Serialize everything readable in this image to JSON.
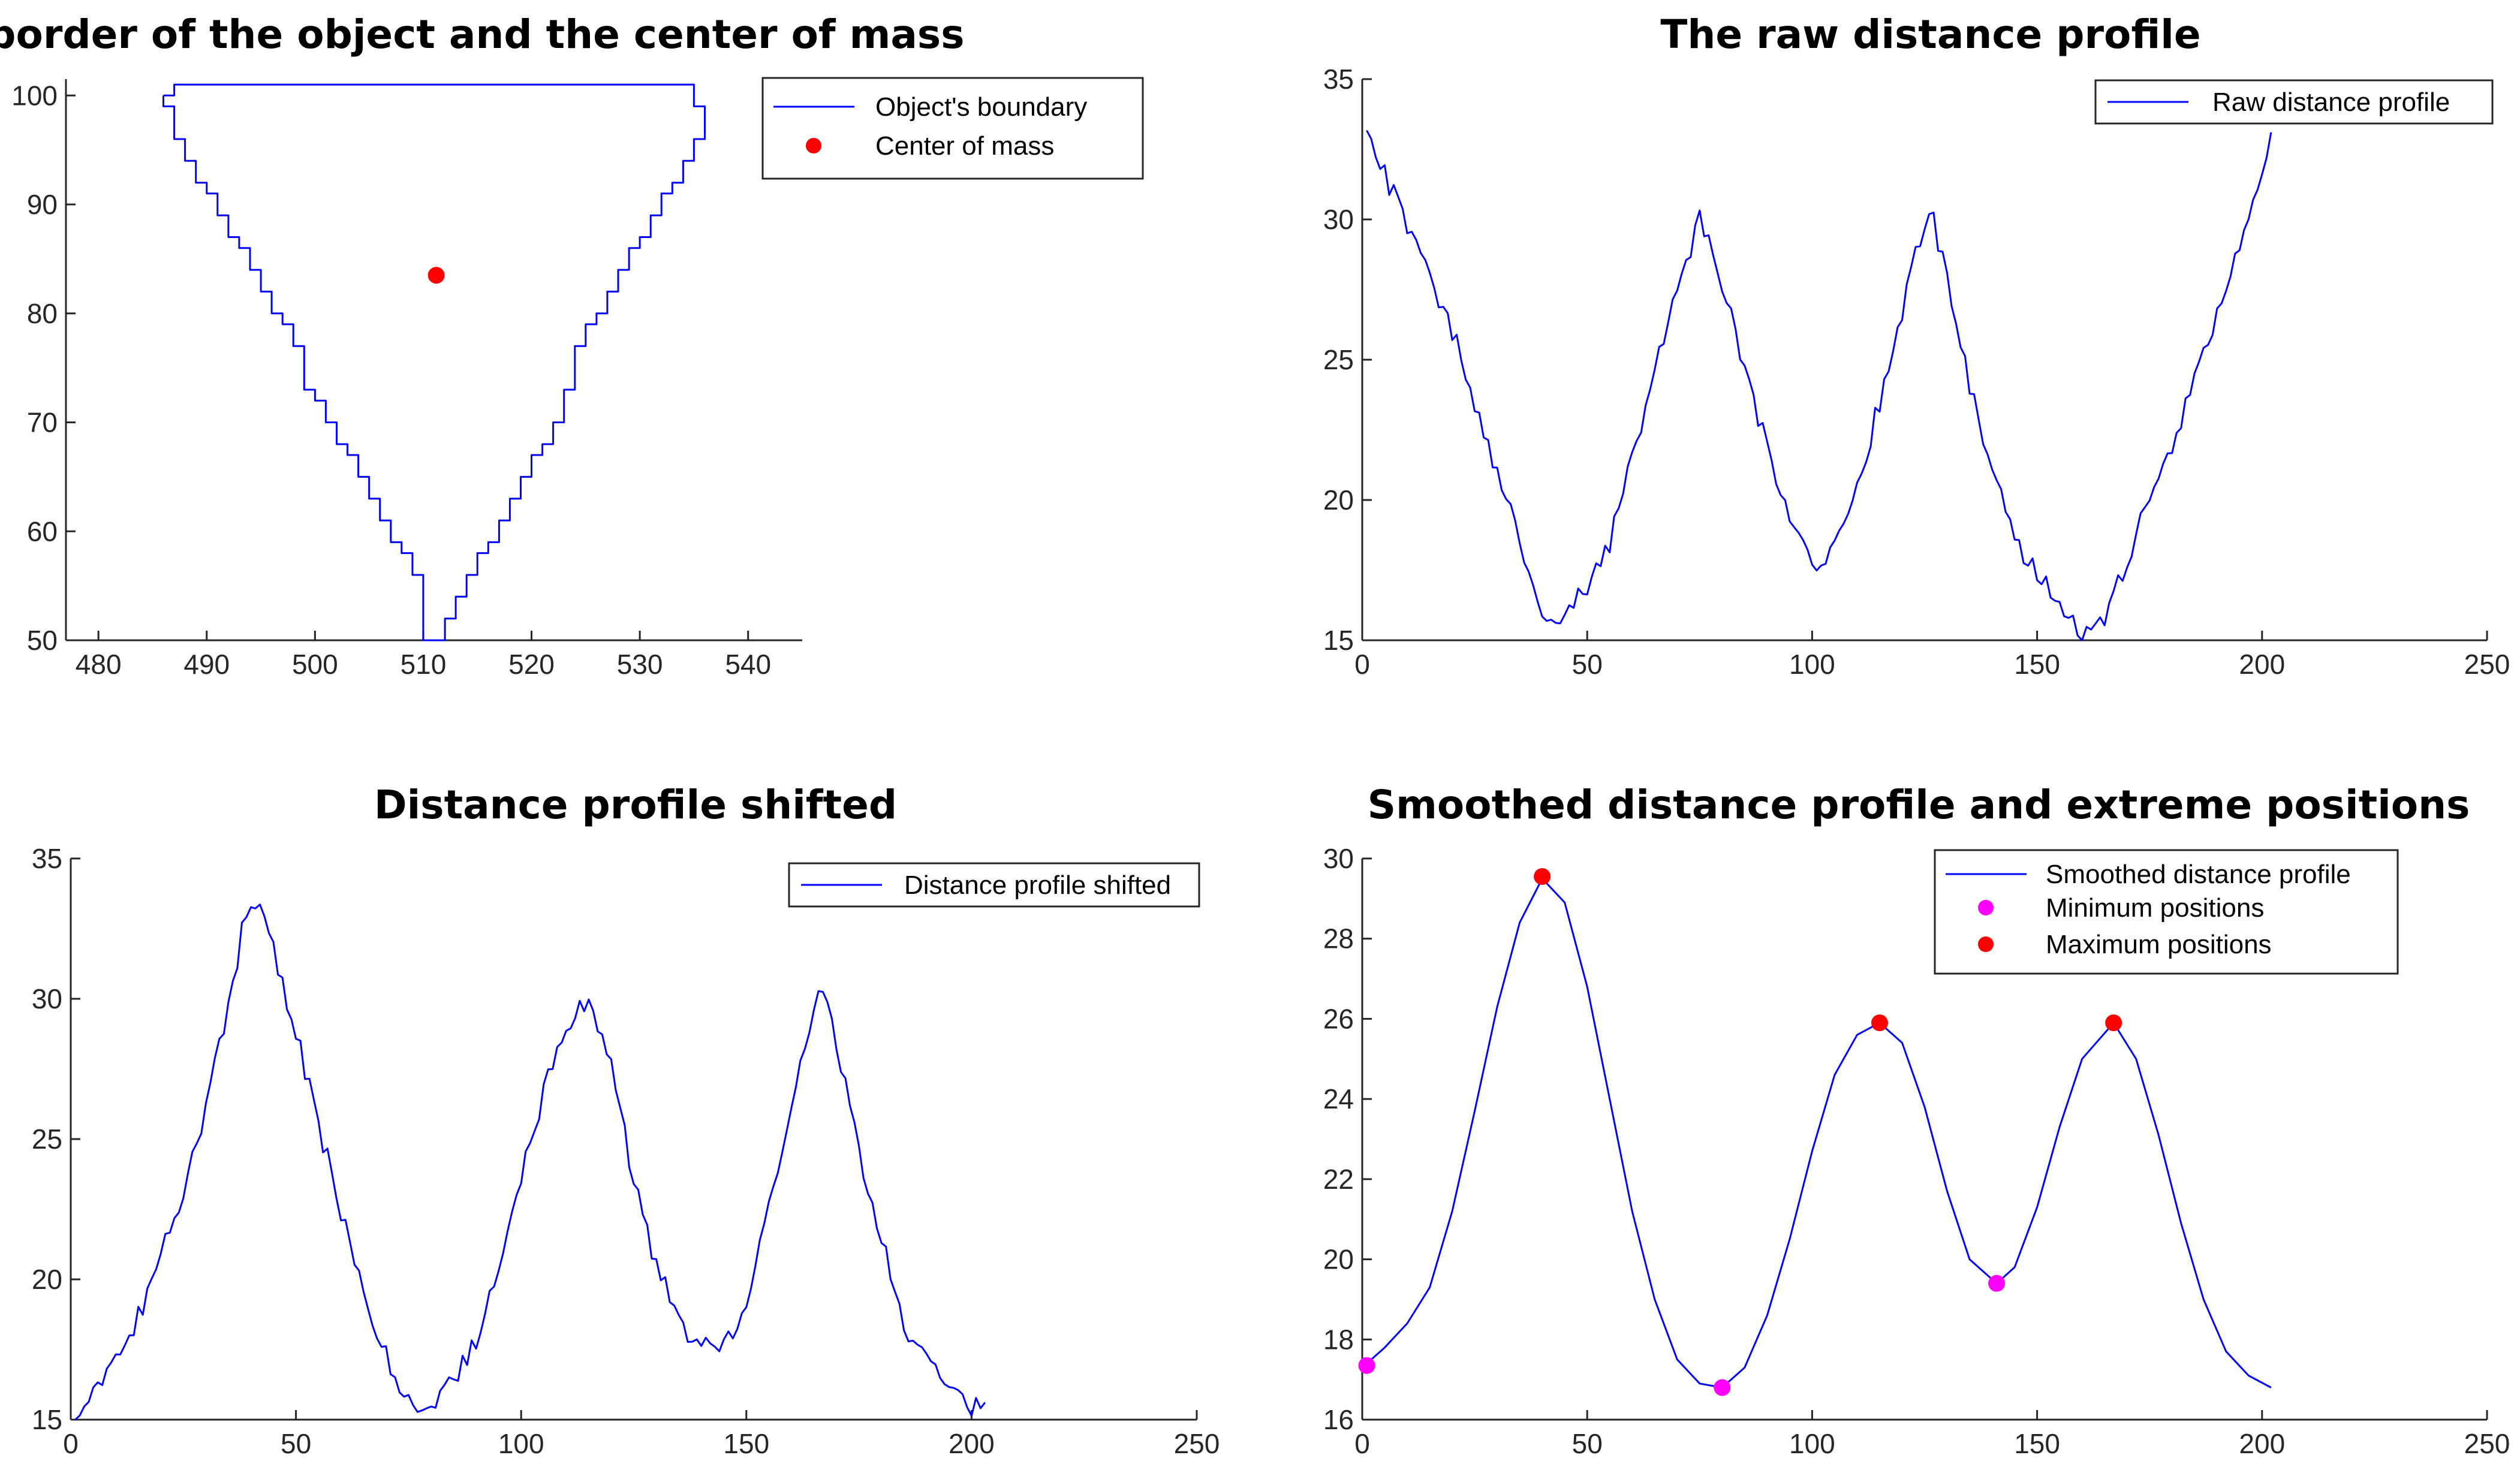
{
  "figure_colors": {
    "axis": "#262626",
    "series": "#0000ff",
    "center": "#ff0000",
    "minimum": "#ff00ff",
    "maximum": "#ff0000"
  },
  "chart_data": [
    {
      "id": "border",
      "type": "line",
      "title": "The border of the object and the center of mass",
      "xlim": [
        477,
        545
      ],
      "ylim": [
        50,
        101.5
      ],
      "xticks": [
        480,
        490,
        500,
        510,
        520,
        530,
        540
      ],
      "yticks": [
        50,
        60,
        70,
        80,
        90,
        100
      ],
      "legend_position": "top-right",
      "series": [
        {
          "name": "Object's boundary",
          "style": "line",
          "x": [
            486,
            486,
            487,
            487,
            488,
            488,
            489,
            489,
            490,
            490,
            491,
            491,
            492,
            492,
            493,
            493,
            494,
            494,
            495,
            495,
            496,
            496,
            497,
            497,
            498,
            498,
            499,
            499,
            500,
            500,
            501,
            501,
            502,
            502,
            503,
            503,
            504,
            504,
            505,
            505,
            506,
            506,
            507,
            507,
            508,
            508,
            509,
            509,
            510,
            510,
            512,
            512,
            513,
            513,
            514,
            514,
            515,
            515,
            516,
            516,
            517,
            517,
            518,
            518,
            519,
            519,
            520,
            520,
            521,
            521,
            522,
            522,
            523,
            523,
            524,
            524,
            525,
            525,
            526,
            526,
            527,
            527,
            528,
            528,
            529,
            529,
            530,
            530,
            531,
            531,
            532,
            532,
            533,
            533,
            534,
            534,
            535,
            535,
            536,
            536,
            535,
            535,
            487,
            487,
            486
          ],
          "y": [
            100,
            99,
            99,
            96,
            96,
            94,
            94,
            92,
            92,
            91,
            91,
            89,
            89,
            87,
            87,
            86,
            86,
            84,
            84,
            82,
            82,
            80,
            80,
            79,
            79,
            77,
            77,
            73,
            73,
            72,
            72,
            70,
            70,
            68,
            68,
            67,
            67,
            65,
            65,
            63,
            63,
            61,
            61,
            59,
            59,
            58,
            58,
            56,
            56,
            50,
            50,
            52,
            52,
            54,
            54,
            56,
            56,
            58,
            58,
            59,
            59,
            61,
            61,
            63,
            63,
            65,
            65,
            67,
            67,
            68,
            68,
            70,
            70,
            73,
            73,
            77,
            77,
            79,
            79,
            80,
            80,
            82,
            82,
            84,
            84,
            86,
            86,
            87,
            87,
            89,
            89,
            91,
            91,
            92,
            92,
            94,
            94,
            96,
            96,
            99,
            99,
            101,
            101,
            100,
            100
          ]
        },
        {
          "name": "Center of mass",
          "style": "marker",
          "x": [
            511.2
          ],
          "y": [
            83.5
          ]
        }
      ]
    },
    {
      "id": "raw",
      "type": "line",
      "title": "The raw distance profile",
      "xlim": [
        0,
        250
      ],
      "ylim": [
        15,
        35
      ],
      "xticks": [
        0,
        50,
        100,
        150,
        200,
        250
      ],
      "yticks": [
        15,
        20,
        25,
        30,
        35
      ],
      "legend_position": "top-right",
      "series": [
        {
          "name": "Raw distance profile",
          "style": "line",
          "noise": 0.45,
          "x": [
            1,
            3,
            5,
            10,
            15,
            20,
            25,
            30,
            35,
            38,
            40,
            43,
            46,
            50,
            55,
            60,
            65,
            70,
            75,
            78,
            82,
            87,
            92,
            97,
            100,
            103,
            106,
            110,
            115,
            120,
            126,
            130,
            135,
            140,
            145,
            150,
            155,
            158,
            161,
            164,
            167,
            170,
            175,
            180,
            185,
            190,
            195,
            200,
            202
          ],
          "y": [
            33.5,
            32.5,
            31.6,
            29.8,
            28.0,
            26.0,
            23.5,
            21.0,
            18.5,
            16.8,
            15.8,
            15.6,
            16.2,
            16.9,
            18.5,
            21.5,
            24.5,
            27.5,
            30.0,
            29.0,
            26.5,
            23.5,
            20.8,
            18.7,
            17.7,
            17.8,
            18.5,
            20.3,
            23.5,
            26.8,
            30.5,
            28.0,
            24.0,
            21.0,
            18.5,
            17.5,
            16.3,
            15.6,
            15.2,
            15.5,
            16.5,
            17.8,
            20.0,
            22.0,
            24.5,
            26.5,
            29.0,
            31.8,
            33.3
          ]
        }
      ]
    },
    {
      "id": "shifted",
      "type": "line",
      "title": "Distance profile shifted",
      "xlim": [
        0,
        250
      ],
      "ylim": [
        15,
        35
      ],
      "xticks": [
        0,
        50,
        100,
        150,
        200,
        250
      ],
      "yticks": [
        15,
        20,
        25,
        30,
        35
      ],
      "legend_position": "top-right",
      "series": [
        {
          "name": "Distance profile shifted",
          "style": "line",
          "noise": 0.45,
          "x": [
            1,
            3,
            5,
            10,
            15,
            20,
            25,
            30,
            35,
            38,
            40,
            42,
            45,
            50,
            55,
            60,
            65,
            70,
            75,
            78,
            80,
            82,
            85,
            90,
            95,
            100,
            105,
            110,
            115,
            120,
            125,
            130,
            135,
            140,
            143,
            146,
            150,
            155,
            160,
            166,
            170,
            175,
            180,
            185,
            190,
            195,
            198,
            201,
            203
          ],
          "y": [
            15.2,
            15.5,
            16.0,
            17.2,
            18.6,
            20.8,
            23.3,
            26.2,
            29.8,
            32.3,
            33.5,
            33.4,
            31.8,
            28.8,
            25.6,
            22.4,
            19.5,
            17.2,
            15.8,
            15.3,
            15.5,
            15.8,
            16.3,
            17.8,
            20.5,
            23.5,
            26.6,
            29.0,
            30.0,
            27.5,
            23.5,
            20.5,
            18.5,
            17.6,
            17.6,
            18.0,
            19.0,
            22.5,
            26.0,
            30.5,
            28.5,
            24.5,
            21.5,
            18.5,
            17.0,
            16.0,
            15.6,
            15.5,
            15.8
          ]
        }
      ]
    },
    {
      "id": "smoothed",
      "type": "line",
      "title": "Smoothed distance profile and extreme positions",
      "xlim": [
        0,
        250
      ],
      "ylim": [
        16,
        30
      ],
      "xticks": [
        0,
        50,
        100,
        150,
        200,
        250
      ],
      "yticks": [
        16,
        18,
        20,
        22,
        24,
        26,
        28,
        30
      ],
      "legend_position": "top-right",
      "series": [
        {
          "name": "Smoothed distance profile",
          "style": "line",
          "x": [
            1,
            5,
            10,
            15,
            20,
            25,
            30,
            35,
            40,
            45,
            50,
            55,
            60,
            65,
            70,
            75,
            80,
            85,
            90,
            95,
            100,
            105,
            110,
            115,
            120,
            125,
            130,
            135,
            141,
            145,
            150,
            155,
            160,
            167,
            172,
            177,
            182,
            187,
            192,
            197,
            202
          ],
          "y": [
            17.4,
            17.8,
            18.4,
            19.3,
            21.2,
            23.7,
            26.3,
            28.4,
            29.5,
            28.9,
            26.8,
            24.0,
            21.2,
            19.0,
            17.5,
            16.9,
            16.8,
            17.3,
            18.6,
            20.5,
            22.7,
            24.6,
            25.6,
            25.9,
            25.4,
            23.8,
            21.7,
            20.0,
            19.4,
            19.8,
            21.3,
            23.3,
            25.0,
            25.9,
            25.0,
            23.1,
            20.9,
            19.0,
            17.7,
            17.1,
            16.8
          ]
        },
        {
          "name": "Minimum positions",
          "style": "marker",
          "x": [
            1,
            80,
            141
          ],
          "y": [
            17.35,
            16.8,
            19.4
          ]
        },
        {
          "name": "Maximum positions",
          "style": "marker",
          "x": [
            40,
            115,
            167
          ],
          "y": [
            29.55,
            25.9,
            25.9
          ]
        }
      ]
    }
  ]
}
